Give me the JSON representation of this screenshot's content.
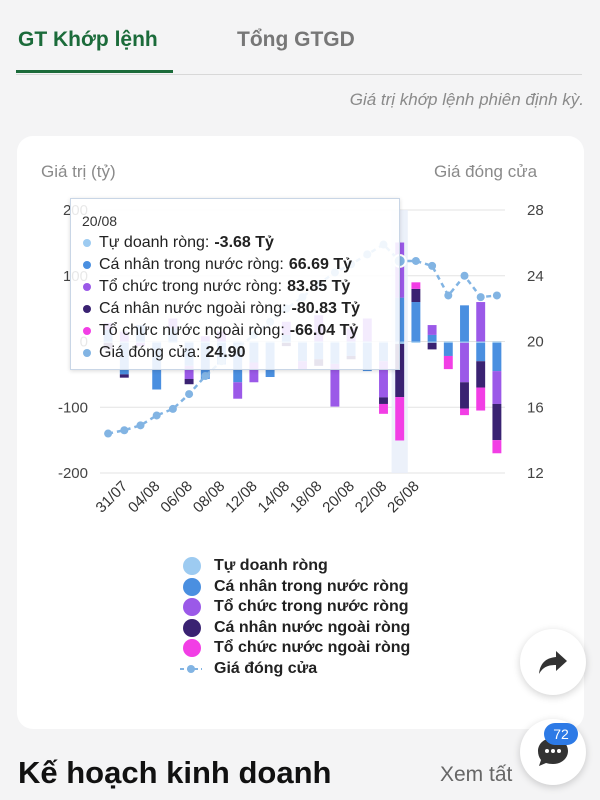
{
  "tabs": [
    {
      "label": "GT Khớp lệnh",
      "active": true
    },
    {
      "label": "Tổng GTGD",
      "active": false
    }
  ],
  "note": "Giá trị khớp lệnh phiên định kỳ.",
  "left_axis_title": "Giá trị (tỷ)",
  "right_axis_title": "Giá đóng cửa",
  "colors": {
    "tu_doanh": "#9dcbf1",
    "ca_nhan_trong_nuoc": "#4a8fe0",
    "to_chuc_trong_nuoc": "#9b59e8",
    "ca_nhan_nuoc_ngoai": "#3a2272",
    "to_chuc_nuoc_ngoai": "#f23ee5",
    "gia_dong_cua": "#82b4e3"
  },
  "chart_data": {
    "type": "bar",
    "stacked": true,
    "y_left": {
      "ticks": [
        -200,
        -100,
        0,
        100,
        200
      ],
      "range": [
        -200,
        200
      ]
    },
    "y_right": {
      "ticks": [
        12,
        16,
        20,
        24,
        28
      ],
      "range": [
        12,
        28
      ]
    },
    "x_ticks": [
      "31/07",
      "04/08",
      "06/08",
      "08/08",
      "12/08",
      "14/08",
      "18/08",
      "20/08",
      "22/08",
      "26/08"
    ],
    "series": [
      {
        "name": "Tự doanh ròng",
        "values": [
          -2,
          -2,
          -2,
          -2,
          -2,
          -2,
          -2,
          -2,
          -2,
          -2,
          -2,
          -2,
          -2,
          -2,
          -2,
          -2,
          -2,
          -2,
          -3.68,
          -2,
          -2,
          -2,
          -2,
          -2,
          -2
        ]
      },
      {
        "name": "Cá nhân trong nước ròng",
        "values": [
          18,
          -48,
          25,
          -71,
          20,
          -35,
          -55,
          -33,
          -60,
          -30,
          -52,
          10,
          -28,
          -25,
          -32,
          -20,
          -43,
          -28,
          66.69,
          60,
          10,
          -20,
          55,
          -28,
          -43
        ]
      },
      {
        "name": "Tổ chức trong nước ròng",
        "values": [
          10,
          15,
          -5,
          0,
          15,
          -20,
          8,
          15,
          -25,
          -30,
          0,
          20,
          -12,
          40,
          -65,
          20,
          35,
          -55,
          83.85,
          0,
          15,
          0,
          -60,
          60,
          -50
        ]
      },
      {
        "name": "Cá nhân nước ngoài ròng",
        "values": [
          -10,
          -5,
          0,
          0,
          0,
          -8,
          0,
          0,
          0,
          0,
          0,
          -5,
          0,
          -10,
          0,
          -5,
          0,
          -10,
          -80.83,
          20,
          -10,
          0,
          -40,
          -40,
          -55
        ]
      },
      {
        "name": "Tổ chức nước ngoài ròng",
        "values": [
          0,
          0,
          0,
          0,
          0,
          0,
          0,
          0,
          0,
          0,
          0,
          0,
          0,
          0,
          0,
          0,
          0,
          -15,
          -66.04,
          10,
          0,
          -20,
          -10,
          -35,
          -20
        ]
      }
    ],
    "line": {
      "name": "Giá đóng cửa",
      "values": [
        14.4,
        14.6,
        14.9,
        15.5,
        15.9,
        16.8,
        17.9,
        18.8,
        19.6,
        20.4,
        21.2,
        22.0,
        22.7,
        23.5,
        24.2,
        24.7,
        25.3,
        25.9,
        24.9,
        24.9,
        24.6,
        22.8,
        24.0,
        22.7,
        22.8
      ]
    }
  },
  "tooltip": {
    "date": "20/08",
    "rows": [
      {
        "label": "Tự doanh ròng:",
        "value": "-3.68 Tỷ"
      },
      {
        "label": "Cá nhân trong nước ròng:",
        "value": "66.69 Tỷ"
      },
      {
        "label": "Tổ chức trong nước ròng:",
        "value": "83.85 Tỷ"
      },
      {
        "label": "Cá nhân nước ngoài ròng:",
        "value": "-80.83 Tỷ"
      },
      {
        "label": "Tổ chức nước ngoài ròng:",
        "value": "-66.04 Tỷ"
      },
      {
        "label": "Giá đóng cửa:",
        "value": "24.90"
      }
    ]
  },
  "legend": [
    "Tự doanh ròng",
    "Cá nhân trong nước ròng",
    "Tổ chức trong nước ròng",
    "Cá nhân nước ngoài ròng",
    "Tổ chức nước ngoài ròng",
    "Giá đóng cửa"
  ],
  "icons": {
    "share": "share-icon",
    "chat": "chat-icon"
  },
  "chat_badge": "72",
  "section_title": "Kế hoạch kinh doanh",
  "see_all": "Xem tất"
}
